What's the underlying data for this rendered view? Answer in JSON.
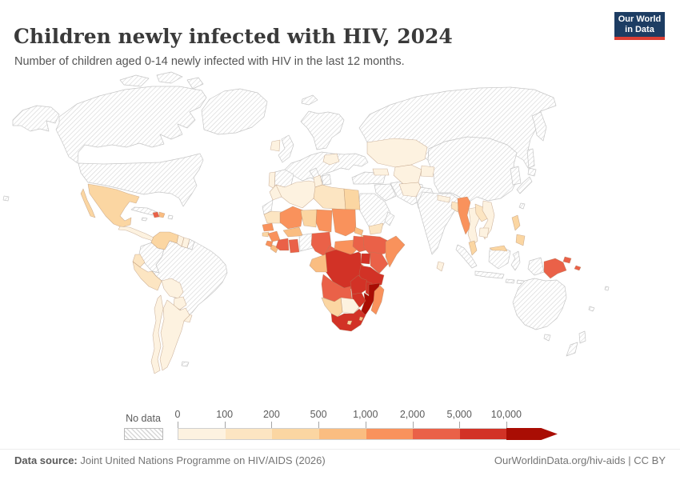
{
  "header": {
    "title": "Children newly infected with HIV, 2024",
    "subtitle": "Number of children aged 0-14 newly infected with HIV in the last 12 months.",
    "logo": {
      "line1": "Our World",
      "line2": "in Data"
    }
  },
  "legend": {
    "no_data_label": "No data",
    "tick_labels": [
      "0",
      "100",
      "200",
      "500",
      "1,000",
      "2,000",
      "5,000",
      "10,000"
    ]
  },
  "footer": {
    "source_label": "Data source:",
    "source_value": " Joint United Nations Programme on HIV/AIDS (2026)",
    "credit": "OurWorldinData.org/hiv-aids | CC BY"
  },
  "colors": {
    "logo_bg": "#1d3d63",
    "logo_accent": "#dc3f34",
    "hatch_line": "#d7d7d7",
    "hatch_stroke": "#c6c6c6",
    "country_stroke": "#a98263"
  },
  "chart_data": {
    "type": "choropleth_map",
    "title": "Children newly infected with HIV, 2024",
    "metric": "Children aged 0-14 newly infected with HIV in the last 12 months",
    "year": 2024,
    "projection": "world map",
    "legend_position": "bottom",
    "no_data": {
      "label": "No data",
      "pattern": "diagonal-hatch"
    },
    "bins": [
      {
        "label": "0-100",
        "color": "#FDF2E0"
      },
      {
        "label": "100-200",
        "color": "#FCE5C2"
      },
      {
        "label": "200-500",
        "color": "#FBD6A2"
      },
      {
        "label": "500-1,000",
        "color": "#FABD81"
      },
      {
        "label": "1,000-2,000",
        "color": "#F9925C"
      },
      {
        "label": "2,000-5,000",
        "color": "#EA6148"
      },
      {
        "label": "5,000-10,000",
        "color": "#D23226"
      },
      {
        "label": ">10,000",
        "color": "#A90D04"
      }
    ],
    "country_bins": {
      "Canada": "no-data",
      "United States": "no-data",
      "Greenland": "no-data",
      "Cuba": "no-data",
      "Jamaica": "no-data",
      "Puerto Rico": "no-data",
      "Colombia": "no-data",
      "Brazil": "no-data",
      "French Guiana": "no-data",
      "Falkland Islands": "no-data",
      "Iceland": "no-data",
      "United Kingdom": "no-data",
      "Europe": "no-data",
      "Scandinavia": "no-data",
      "Spain": "no-data",
      "Italy": "no-data",
      "Greece": "no-data",
      "Russia": "no-data",
      "Turkey": "no-data",
      "Iraq and Syria": "no-data",
      "Iran": "no-data",
      "Saudi Arabia": "no-data",
      "Oman": "no-data",
      "Pakistan": "no-data",
      "India": "no-data",
      "China and Mongolia": "no-data",
      "Korea": "no-data",
      "Japan": "no-data",
      "Taiwan": "no-data",
      "Indonesia": "no-data",
      "Papua (Indonesia)": "no-data",
      "Australia": "no-data",
      "New Zealand": "no-data",
      "Western Sahara": "no-data",
      "Togo and Benin": "no-data",
      "Fiji": "no-data",
      "New Caledonia": "no-data",
      "Mexico": "200-500",
      "Central America": "0-100",
      "Haiti": "2,000-5,000",
      "Dominican Republic": "500-1,000",
      "Venezuela": "200-500",
      "Guyana": "0-100",
      "Suriname": "0-100",
      "Ecuador": "100-200",
      "Peru": "100-200",
      "Bolivia": "0-100",
      "Paraguay": "0-100",
      "Uruguay": "0-100",
      "Argentina": "0-100",
      "Chile": "0-100",
      "Ireland": "0-100",
      "Portugal": "0-100",
      "Romania": "0-100",
      "Caucasus": "0-100",
      "Morocco": "0-100",
      "Algeria": "0-100",
      "Tunisia": "0-100",
      "Libya": "100-200",
      "Egypt": "200-500",
      "Mauritania": "100-200",
      "Mali": "1,000-2,000",
      "Niger": "200-500",
      "Chad": "1,000-2,000",
      "Sudan": "1,000-2,000",
      "Eritrea": "500-1,000",
      "Djibouti": "200-500",
      "Senegal": "1,000-2,000",
      "Guinea-Bissau": "200-500",
      "Guinea": "1,000-2,000",
      "Sierra Leone": "1,000-2,000",
      "Liberia": "500-1,000",
      "Cote d'Ivoire": "2,000-5,000",
      "Ghana": "2,000-5,000",
      "Burkina Faso": "500-1,000",
      "Nigeria": "2,000-5,000",
      "Cameroon": "2,000-5,000",
      "Central African Republic": "1,000-2,000",
      "South Sudan": "2,000-5,000",
      "Ethiopia": "2,000-5,000",
      "Somalia": "1,000-2,000",
      "Uganda": "5,000-10,000",
      "Kenya": "2,000-5,000",
      "Rwanda and Burundi": "500-1,000",
      "Democratic Republic of Congo": "5,000-10,000",
      "Gabon and Congo": "500-1,000",
      "Tanzania": "5,000-10,000",
      "Angola": "2,000-5,000",
      "Zambia": "5,000-10,000",
      "Malawi": "5,000-10,000",
      "Mozambique": ">10,000",
      "Zimbabwe": "5,000-10,000",
      "Botswana": "0-100",
      "Namibia": "200-500",
      "South Africa": "5,000-10,000",
      "Lesotho": "200-500",
      "Eswatini": "500-1,000",
      "Madagascar": "1,000-2,000",
      "Yemen": "100-200",
      "Kazakhstan": "0-100",
      "Uzbekistan and Turkmenistan": "0-100",
      "Kyrgyzstan and Tajikistan": "0-100",
      "Afghanistan": "0-100",
      "Nepal": "0-100",
      "Bangladesh": "100-200",
      "Sri Lanka": "0-100",
      "Myanmar": "1,000-2,000",
      "Thailand": "0-100",
      "Laos": "100-200",
      "Vietnam": "0-100",
      "Cambodia": "0-100",
      "Malaysia": "200-500",
      "Philippines": "200-500",
      "Papua New Guinea": "2,000-5,000"
    }
  }
}
